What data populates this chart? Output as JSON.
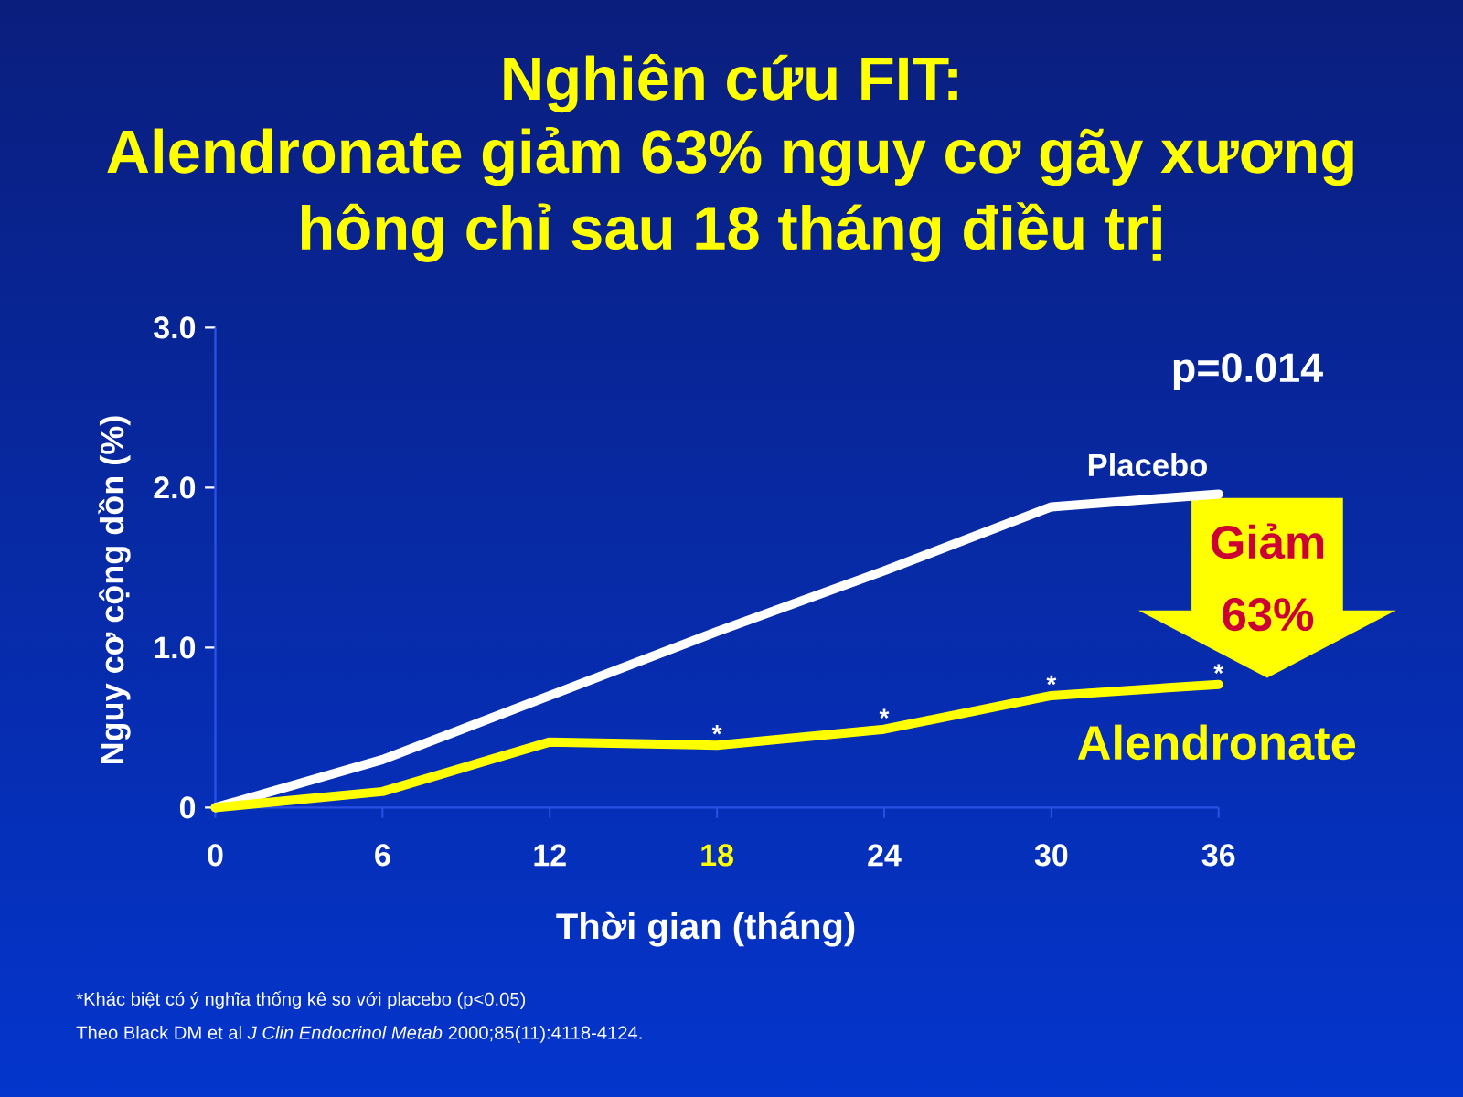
{
  "chart_data": {
    "type": "line",
    "title": "Nghiên cứu FIT:",
    "subtitle": "Alendronate giảm 63% nguy cơ gãy xương hông chỉ sau 18 tháng điều trị",
    "xlabel": "Thời gian (tháng)",
    "ylabel": "Nguy cơ cộng dồn (%)",
    "x": [
      0,
      6,
      12,
      18,
      24,
      30,
      36
    ],
    "series": [
      {
        "name": "Placebo",
        "color": "#ffffff",
        "values": [
          0,
          0.3,
          0.7,
          1.1,
          1.48,
          1.88,
          1.96
        ]
      },
      {
        "name": "Alendronate",
        "color": "#ffff00",
        "values": [
          0,
          0.1,
          0.41,
          0.39,
          0.49,
          0.7,
          0.77
        ]
      }
    ],
    "xlim": [
      0,
      36
    ],
    "ylim": [
      0,
      3
    ],
    "xticks": [
      0,
      6,
      12,
      18,
      24,
      30,
      36
    ],
    "yticks": [
      0,
      {
        "value": 1,
        "label": "1.0"
      },
      {
        "value": 2,
        "label": "2.0"
      },
      {
        "value": 3,
        "label": "3.0"
      }
    ],
    "annotations": [
      "p=0.014",
      {
        "text": "*",
        "x": 18,
        "y": 0.39
      },
      {
        "text": "*",
        "x": 24,
        "y": 0.49
      },
      {
        "text": "*",
        "x": 30,
        "y": 0.7
      },
      {
        "text": "*",
        "x": 36,
        "y": 0.77
      },
      "Giảm 63%",
      "*Khác biệt có ý nghĩa thống kê so với placebo (p<0.05)",
      "Theo Black DM et al *J Clin Endocrinol Metab* 2000;85(11):4118-4124."
    ],
    "legend": false,
    "grid": false,
    "marker": "none",
    "line_style": "solid"
  }
}
